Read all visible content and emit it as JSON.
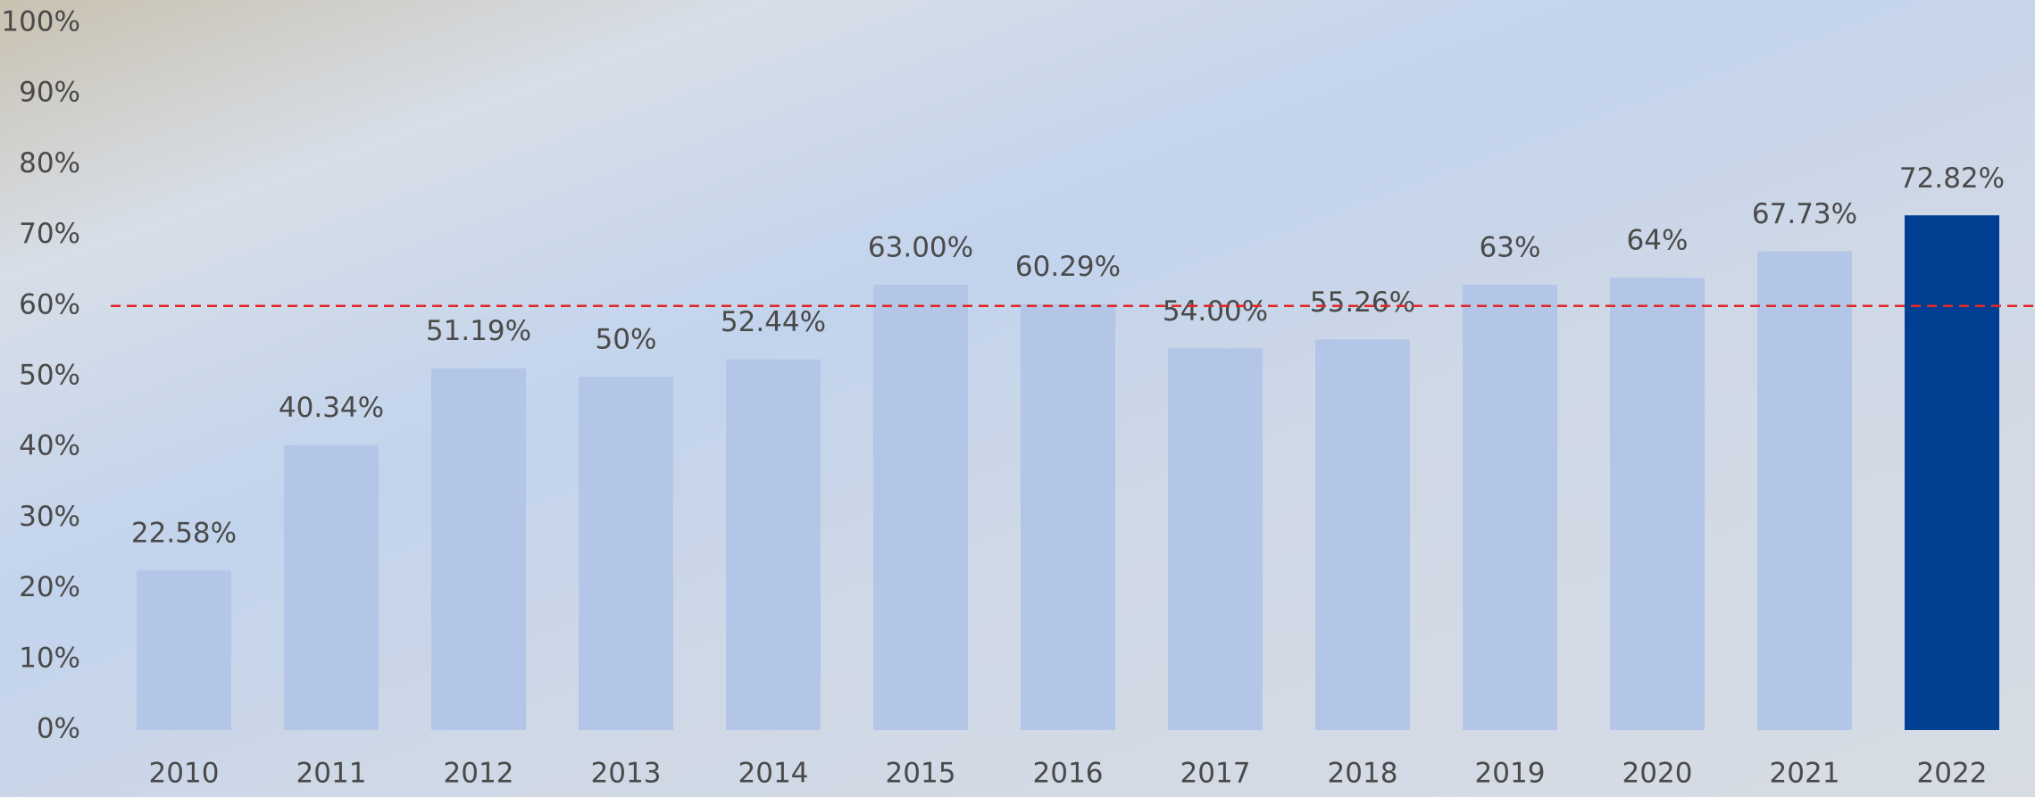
{
  "chart_data": {
    "type": "bar",
    "categories": [
      "2010",
      "2011",
      "2012",
      "2013",
      "2014",
      "2015",
      "2016",
      "2017",
      "2018",
      "2019",
      "2020",
      "2021",
      "2022"
    ],
    "values": [
      22.58,
      40.34,
      51.19,
      50,
      52.44,
      63,
      60.29,
      54,
      55.26,
      63,
      64,
      67.73,
      72.82
    ],
    "value_labels": [
      "22.58%",
      "40.34%",
      "51.19%",
      "50%",
      "52.44%",
      "63.00%",
      "60.29%",
      "54.00%",
      "55.26%",
      "63%",
      "64%",
      "67.73%",
      "72.82%"
    ],
    "colors": [
      "#b4c6e7",
      "#b4c6e7",
      "#b4c6e7",
      "#b4c6e7",
      "#b4c6e7",
      "#b4c6e7",
      "#b4c6e7",
      "#b4c6e7",
      "#b4c6e7",
      "#b4c6e7",
      "#b4c6e7",
      "#b4c6e7",
      "#003f91"
    ],
    "ylim": [
      0,
      100
    ],
    "yticks": [
      {
        "value": 0,
        "label": "0%"
      },
      {
        "value": 10,
        "label": "10%"
      },
      {
        "value": 20,
        "label": "20%"
      },
      {
        "value": 30,
        "label": "30%"
      },
      {
        "value": 40,
        "label": "40%"
      },
      {
        "value": 50,
        "label": "50%"
      },
      {
        "value": 60,
        "label": "60%"
      },
      {
        "value": 70,
        "label": "70%"
      },
      {
        "value": 80,
        "label": "80%"
      },
      {
        "value": 90,
        "label": "90%"
      },
      {
        "value": 100,
        "label": "100%"
      }
    ],
    "reference_line": {
      "value": 60,
      "color": "#e02828"
    },
    "grid": false
  }
}
